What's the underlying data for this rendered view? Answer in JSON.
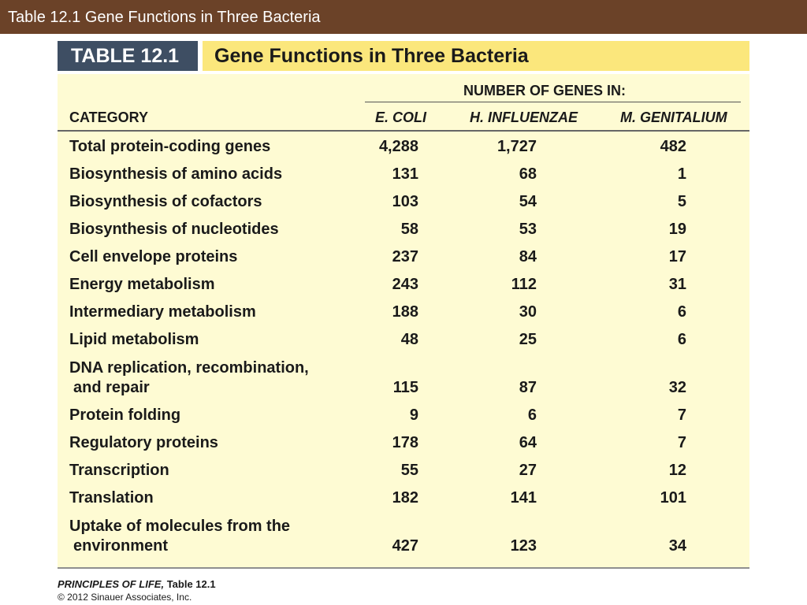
{
  "slide": {
    "title": "Table 12.1  Gene Functions in Three Bacteria"
  },
  "table": {
    "label": "TABLE 12.1",
    "title": "Gene Functions in Three Bacteria",
    "group_heading": "NUMBER OF GENES IN:",
    "columns": {
      "category": "CATEGORY",
      "ecoli": "E. COLI",
      "hinfluenzae": "H. INFLUENZAE",
      "mgenitalium": "M. GENITALIUM"
    },
    "rows": [
      {
        "category": "Total protein-coding genes",
        "ecoli": "4,288",
        "hinfluenzae": "1,727",
        "mgenitalium": "482"
      },
      {
        "category": "Biosynthesis of amino acids",
        "ecoli": "131",
        "hinfluenzae": "68",
        "mgenitalium": "1"
      },
      {
        "category": "Biosynthesis of cofactors",
        "ecoli": "103",
        "hinfluenzae": "54",
        "mgenitalium": "5"
      },
      {
        "category": "Biosynthesis of nucleotides",
        "ecoli": "58",
        "hinfluenzae": "53",
        "mgenitalium": "19"
      },
      {
        "category": "Cell envelope proteins",
        "ecoli": "237",
        "hinfluenzae": "84",
        "mgenitalium": "17"
      },
      {
        "category": "Energy metabolism",
        "ecoli": "243",
        "hinfluenzae": "112",
        "mgenitalium": "31"
      },
      {
        "category": "Intermediary metabolism",
        "ecoli": "188",
        "hinfluenzae": "30",
        "mgenitalium": "6"
      },
      {
        "category": "Lipid metabolism",
        "ecoli": "48",
        "hinfluenzae": "25",
        "mgenitalium": "6"
      },
      {
        "category": "DNA replication, recombination,",
        "category_cont": "and repair",
        "ecoli": "115",
        "hinfluenzae": "87",
        "mgenitalium": "32"
      },
      {
        "category": "Protein folding",
        "ecoli": "9",
        "hinfluenzae": "6",
        "mgenitalium": "7"
      },
      {
        "category": "Regulatory proteins",
        "ecoli": "178",
        "hinfluenzae": "64",
        "mgenitalium": "7"
      },
      {
        "category": "Transcription",
        "ecoli": "55",
        "hinfluenzae": "27",
        "mgenitalium": "12"
      },
      {
        "category": "Translation",
        "ecoli": "182",
        "hinfluenzae": "141",
        "mgenitalium": "101"
      },
      {
        "category": "Uptake of molecules from the",
        "category_cont": "environment",
        "ecoli": "427",
        "hinfluenzae": "123",
        "mgenitalium": "34"
      }
    ]
  },
  "footer": {
    "book": "PRINCIPLES OF LIFE,",
    "reference": "Table 12.1",
    "copyright": "© 2012 Sinauer Associates, Inc."
  },
  "colors": {
    "title_bar": "#6b4228",
    "label_bg": "#3e4e63",
    "title_bg": "#fbe77c",
    "table_bg": "#fefbd3"
  }
}
